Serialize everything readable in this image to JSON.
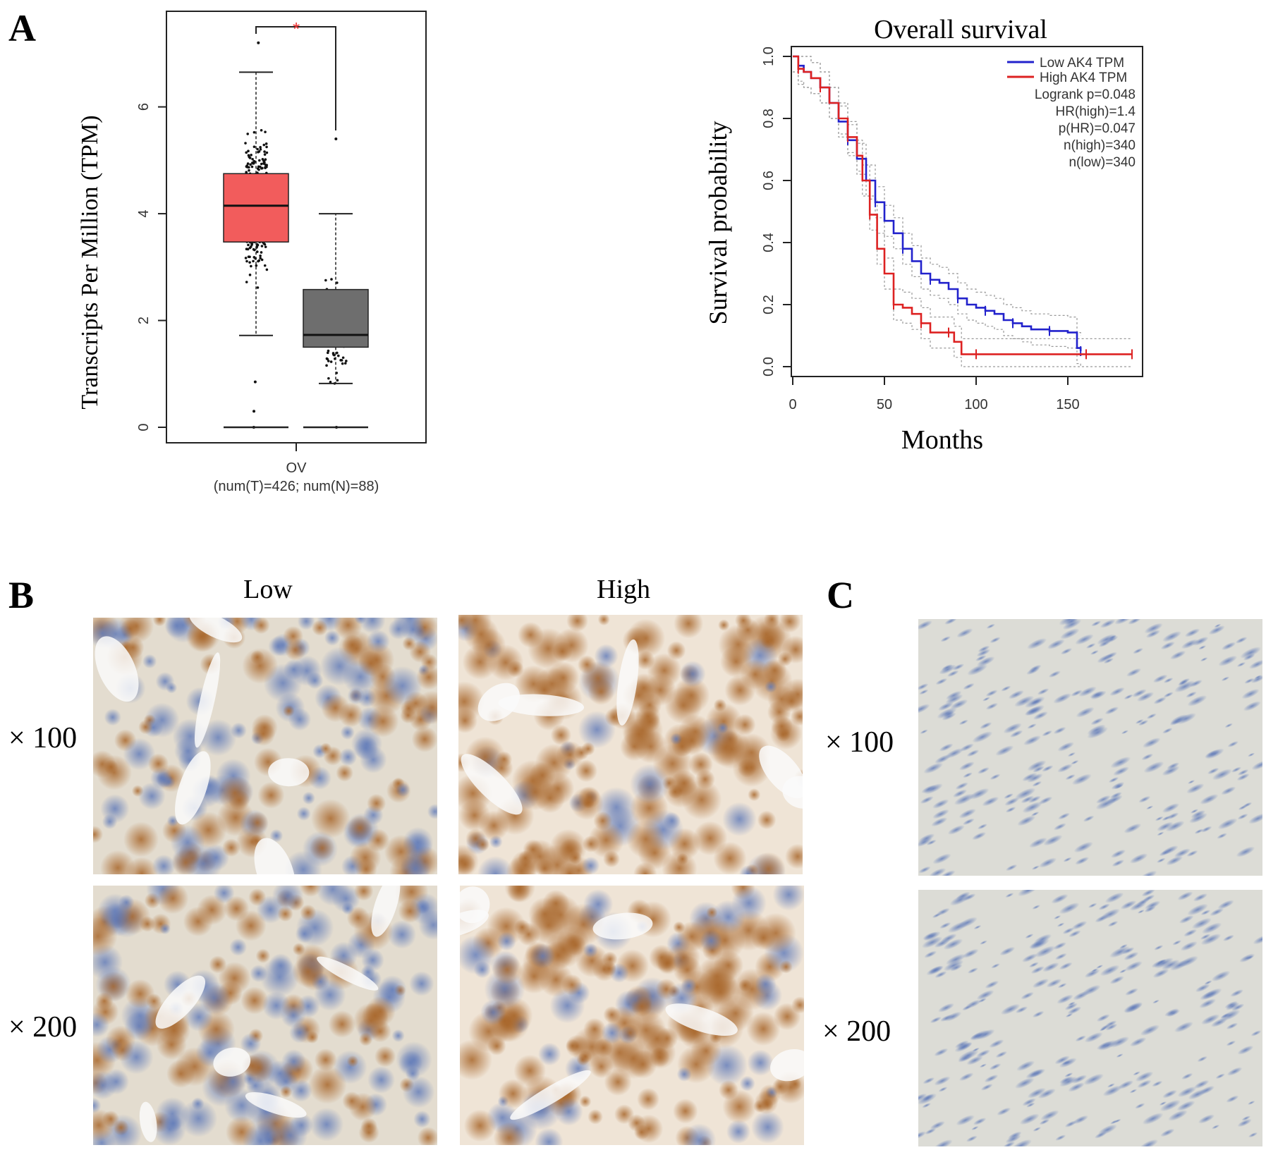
{
  "panels": {
    "a_letter": "A",
    "b_letter": "B",
    "c_letter": "C"
  },
  "chart_data": [
    {
      "type": "box",
      "ylabel": "Transcripts Per Million (TPM)",
      "ylim": [
        0,
        7.5
      ],
      "yticks": [
        0,
        2,
        4,
        6
      ],
      "category": "OV",
      "category_note": "(num(T)=426; num(N)=88)",
      "significance": "*",
      "boxes": [
        {
          "group": "T",
          "n": 426,
          "whisker_low": 1.72,
          "q1": 3.47,
          "median": 4.15,
          "q3": 4.75,
          "whisker_high": 6.65,
          "outliers": [
            7.2,
            0.85,
            0.3,
            0.0
          ],
          "color": "#f25c5c"
        },
        {
          "group": "N",
          "n": 88,
          "whisker_low": 0.82,
          "q1": 1.5,
          "median": 1.73,
          "q3": 2.58,
          "whisker_high": 4.0,
          "outliers": [
            5.4,
            0.0
          ],
          "color": "#6e6e6e"
        }
      ]
    },
    {
      "type": "line",
      "title": "Overall survival",
      "xlabel": "Months",
      "ylabel": "Survival probability",
      "xlim": [
        0,
        190
      ],
      "ylim": [
        0,
        1.05
      ],
      "xticks": [
        0,
        50,
        100,
        150
      ],
      "yticks": [
        "0.0",
        "0.2",
        "0.4",
        "0.6",
        "0.8",
        "1.0"
      ],
      "legend_position": "top-right",
      "series": [
        {
          "name": "Low AK4 TPM",
          "color": "#2222cc",
          "x": [
            0,
            3,
            6,
            10,
            15,
            20,
            25,
            30,
            35,
            40,
            45,
            50,
            55,
            60,
            65,
            70,
            75,
            80,
            85,
            90,
            95,
            100,
            105,
            110,
            115,
            120,
            125,
            130,
            140,
            150,
            155,
            157
          ],
          "y": [
            1.0,
            0.97,
            0.95,
            0.93,
            0.9,
            0.85,
            0.79,
            0.73,
            0.67,
            0.6,
            0.53,
            0.47,
            0.43,
            0.38,
            0.34,
            0.3,
            0.28,
            0.27,
            0.25,
            0.22,
            0.2,
            0.19,
            0.18,
            0.17,
            0.15,
            0.14,
            0.13,
            0.12,
            0.115,
            0.11,
            0.06,
            0.05
          ]
        },
        {
          "name": "High AK4 TPM",
          "color": "#dd2222",
          "x": [
            0,
            3,
            6,
            10,
            15,
            20,
            25,
            30,
            35,
            38,
            42,
            46,
            50,
            55,
            60,
            65,
            70,
            75,
            80,
            85,
            88,
            92,
            100,
            120,
            140,
            160,
            185
          ],
          "y": [
            1.0,
            0.96,
            0.95,
            0.93,
            0.9,
            0.85,
            0.8,
            0.74,
            0.68,
            0.6,
            0.49,
            0.38,
            0.3,
            0.2,
            0.19,
            0.17,
            0.14,
            0.11,
            0.11,
            0.11,
            0.08,
            0.04,
            0.04,
            0.04,
            0.04,
            0.04,
            0.04
          ]
        }
      ],
      "stats": [
        "Logrank p=0.048",
        "HR(high)=1.4",
        "p(HR)=0.047",
        "n(high)=340",
        "n(low)=340"
      ]
    }
  ],
  "histology": {
    "col_low": "Low",
    "col_high": "High",
    "mag_100": "× 100",
    "mag_200": "× 200"
  }
}
